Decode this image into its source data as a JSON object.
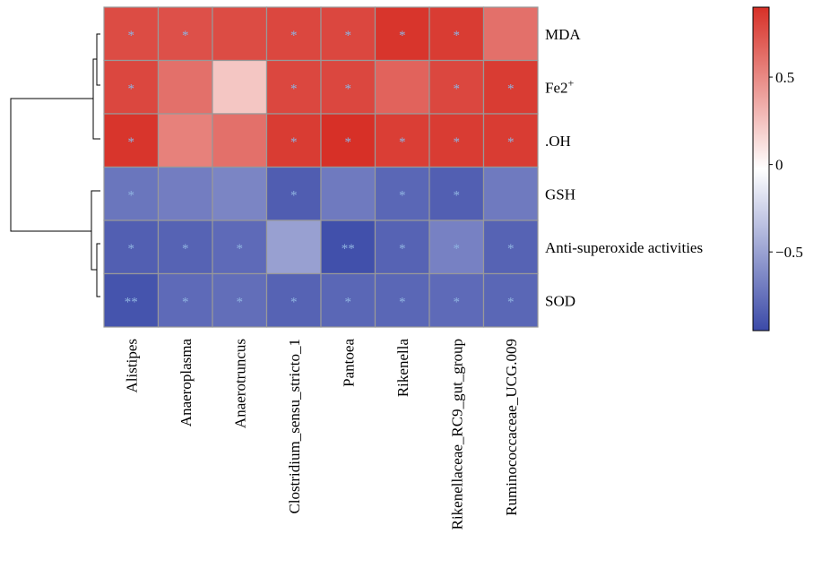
{
  "chart_data": {
    "type": "heatmap",
    "title": "",
    "xlabel": "",
    "ylabel": "",
    "rows": [
      "MDA",
      "Fe2+",
      ".OH",
      "GSH",
      "Anti-superoxide activities",
      "SOD"
    ],
    "columns": [
      "Alistipes",
      "Anaeroplasma",
      "Anaerotruncus",
      "Clostridium_sensu_stricto_1",
      "Pantoea",
      "Rikenella",
      "Rikenellaceae_RC9_gut_group",
      "Ruminococcaceae_UCG.009"
    ],
    "values": [
      [
        0.78,
        0.76,
        0.78,
        0.8,
        0.8,
        0.88,
        0.85,
        0.62
      ],
      [
        0.8,
        0.62,
        0.25,
        0.8,
        0.8,
        0.68,
        0.8,
        0.85
      ],
      [
        0.88,
        0.55,
        0.62,
        0.85,
        0.9,
        0.84,
        0.85,
        0.85
      ],
      [
        -0.72,
        -0.68,
        -0.64,
        -0.85,
        -0.7,
        -0.8,
        -0.84,
        -0.7
      ],
      [
        -0.84,
        -0.82,
        -0.78,
        -0.5,
        -0.92,
        -0.82,
        -0.66,
        -0.82
      ],
      [
        -0.9,
        -0.78,
        -0.76,
        -0.82,
        -0.8,
        -0.8,
        -0.78,
        -0.8
      ]
    ],
    "significance": [
      [
        "*",
        "*",
        "",
        "*",
        "*",
        "*",
        "*",
        ""
      ],
      [
        "*",
        "",
        "",
        "*",
        "*",
        "",
        "*",
        "*"
      ],
      [
        "*",
        "",
        "",
        "*",
        "*",
        "*",
        "*",
        "*"
      ],
      [
        "*",
        "",
        "",
        "*",
        "",
        "*",
        "*",
        ""
      ],
      [
        "*",
        "*",
        "*",
        "",
        "**",
        "*",
        "*",
        "*"
      ],
      [
        "**",
        "*",
        "*",
        "*",
        "*",
        "*",
        "*",
        "*"
      ]
    ],
    "color_scale": {
      "min": -0.95,
      "max": 0.9,
      "low_color": "#3b4aa8",
      "mid_color": "#ffffff",
      "high_color": "#d73027"
    },
    "colorbar_ticks": [
      0.5,
      0,
      -0.5
    ],
    "colorbar_tick_labels": [
      "0.5",
      "0",
      "−0.5"
    ],
    "dendrogram": "row clustering tree on left",
    "grid_color": "#999999",
    "significance_color": "#8fb3e0"
  }
}
